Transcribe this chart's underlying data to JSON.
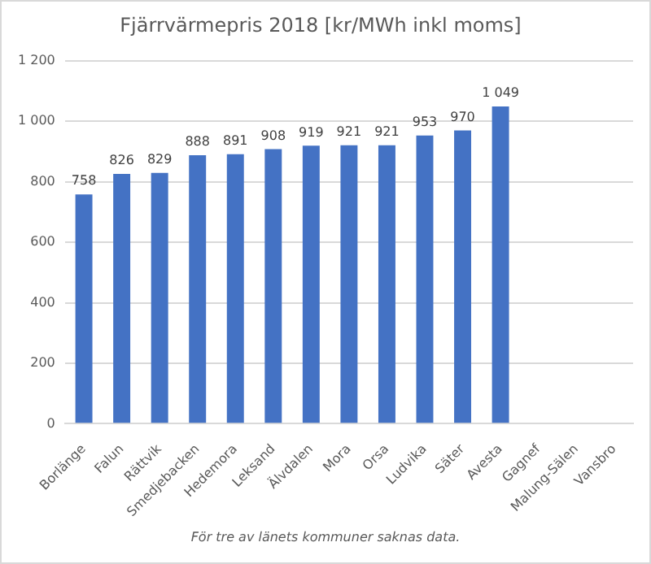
{
  "chart_data": {
    "type": "bar",
    "title": "Fjärrvärmepris 2018 [kr/MWh inkl moms]",
    "categories": [
      "Borlänge",
      "Falun",
      "Rättvik",
      "Smedjebacken",
      "Hedemora",
      "Leksand",
      "Älvdalen",
      "Mora",
      "Orsa",
      "Ludvika",
      "Säter",
      "Avesta",
      "Gagnef",
      "Malung-Sälen",
      "Vansbro"
    ],
    "values": [
      758,
      826,
      829,
      888,
      891,
      908,
      919,
      921,
      921,
      953,
      970,
      1049,
      null,
      null,
      null
    ],
    "value_labels": [
      "758",
      "826",
      "829",
      "888",
      "891",
      "908",
      "919",
      "921",
      "921",
      "953",
      "970",
      "1 049",
      null,
      null,
      null
    ],
    "color": "#4472c4",
    "ylim": [
      0,
      1200
    ],
    "yticks": [
      0,
      200,
      400,
      600,
      800,
      {
        "value": 1000,
        "label": "1 000"
      },
      {
        "value": 1200,
        "label": "1 200"
      }
    ],
    "grid": "y",
    "annotations": [
      "För tre av länets kommuner saknas data."
    ]
  }
}
